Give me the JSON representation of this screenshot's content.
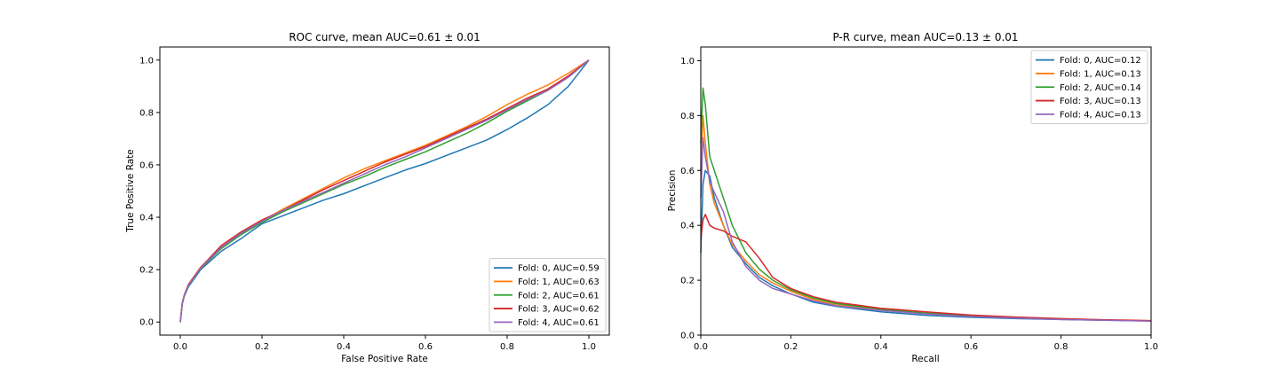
{
  "figure": {
    "background": "#ffffff"
  },
  "chart_data": [
    {
      "type": "line",
      "title": "ROC curve, mean AUC=0.61 ± 0.01",
      "xlabel": "False Positive Rate",
      "ylabel": "True Positive Rate",
      "xlim": [
        -0.05,
        1.05
      ],
      "ylim": [
        -0.05,
        1.05
      ],
      "xticks": [
        0.0,
        0.2,
        0.4,
        0.6,
        0.8,
        1.0
      ],
      "yticks": [
        0.0,
        0.2,
        0.4,
        0.6,
        0.8,
        1.0
      ],
      "xtick_labels": [
        "0.0",
        "0.2",
        "0.4",
        "0.6",
        "0.8",
        "1.0"
      ],
      "ytick_labels": [
        "0.0",
        "0.2",
        "0.4",
        "0.6",
        "0.8",
        "1.0"
      ],
      "grid": false,
      "legend_position": "lower-right",
      "x": [
        0.0,
        0.005,
        0.01,
        0.02,
        0.05,
        0.1,
        0.15,
        0.2,
        0.25,
        0.3,
        0.35,
        0.4,
        0.45,
        0.5,
        0.55,
        0.6,
        0.65,
        0.7,
        0.75,
        0.8,
        0.85,
        0.9,
        0.95,
        1.0
      ],
      "series": [
        {
          "name": "Fold: 0, AUC=0.59",
          "color": "#1f77b4",
          "values": [
            0.0,
            0.07,
            0.1,
            0.135,
            0.2,
            0.27,
            0.32,
            0.375,
            0.405,
            0.435,
            0.465,
            0.49,
            0.52,
            0.55,
            0.58,
            0.605,
            0.635,
            0.665,
            0.695,
            0.735,
            0.78,
            0.83,
            0.9,
            1.0
          ]
        },
        {
          "name": "Fold: 1, AUC=0.63",
          "color": "#ff7f0e",
          "values": [
            0.0,
            0.075,
            0.105,
            0.145,
            0.21,
            0.285,
            0.34,
            0.385,
            0.43,
            0.47,
            0.51,
            0.55,
            0.585,
            0.615,
            0.645,
            0.675,
            0.71,
            0.745,
            0.785,
            0.83,
            0.87,
            0.905,
            0.95,
            1.0
          ]
        },
        {
          "name": "Fold: 2, AUC=0.61",
          "color": "#2ca02c",
          "values": [
            0.0,
            0.072,
            0.102,
            0.14,
            0.205,
            0.28,
            0.335,
            0.38,
            0.42,
            0.455,
            0.49,
            0.525,
            0.555,
            0.59,
            0.62,
            0.65,
            0.685,
            0.72,
            0.76,
            0.805,
            0.845,
            0.885,
            0.935,
            1.0
          ]
        },
        {
          "name": "Fold: 3, AUC=0.62",
          "color": "#d62728",
          "values": [
            0.0,
            0.073,
            0.104,
            0.143,
            0.208,
            0.292,
            0.345,
            0.39,
            0.425,
            0.465,
            0.505,
            0.54,
            0.575,
            0.61,
            0.64,
            0.67,
            0.705,
            0.74,
            0.775,
            0.815,
            0.855,
            0.89,
            0.94,
            1.0
          ]
        },
        {
          "name": "Fold: 4, AUC=0.61",
          "color": "#9467bd",
          "values": [
            0.0,
            0.072,
            0.103,
            0.141,
            0.206,
            0.285,
            0.34,
            0.385,
            0.425,
            0.46,
            0.495,
            0.53,
            0.565,
            0.6,
            0.63,
            0.665,
            0.7,
            0.735,
            0.77,
            0.81,
            0.85,
            0.885,
            0.935,
            1.0
          ]
        }
      ]
    },
    {
      "type": "line",
      "title": "P-R curve, mean AUC=0.13 ± 0.01",
      "xlabel": "Recall",
      "ylabel": "Precision",
      "xlim": [
        0.0,
        1.0
      ],
      "ylim": [
        0.0,
        1.05
      ],
      "xticks": [
        0.0,
        0.2,
        0.4,
        0.6,
        0.8,
        1.0
      ],
      "yticks": [
        0.0,
        0.2,
        0.4,
        0.6,
        0.8,
        1.0
      ],
      "xtick_labels": [
        "0.0",
        "0.2",
        "0.4",
        "0.6",
        "0.8",
        "1.0"
      ],
      "ytick_labels": [
        "0.0",
        "0.2",
        "0.4",
        "0.6",
        "0.8",
        "1.0"
      ],
      "grid": false,
      "legend_position": "upper-right",
      "x": [
        0.0,
        0.005,
        0.01,
        0.02,
        0.03,
        0.05,
        0.07,
        0.1,
        0.13,
        0.16,
        0.2,
        0.25,
        0.3,
        0.4,
        0.5,
        0.6,
        0.7,
        0.8,
        0.9,
        1.0
      ],
      "series": [
        {
          "name": "Fold: 0, AUC=0.12",
          "color": "#1f77b4",
          "values": [
            0.3,
            0.55,
            0.6,
            0.58,
            0.5,
            0.4,
            0.32,
            0.26,
            0.21,
            0.18,
            0.15,
            0.12,
            0.105,
            0.085,
            0.072,
            0.065,
            0.06,
            0.057,
            0.054,
            0.052
          ]
        },
        {
          "name": "Fold: 1, AUC=0.13",
          "color": "#ff7f0e",
          "values": [
            0.6,
            0.8,
            0.7,
            0.55,
            0.48,
            0.4,
            0.33,
            0.27,
            0.22,
            0.19,
            0.16,
            0.13,
            0.11,
            0.092,
            0.08,
            0.07,
            0.063,
            0.058,
            0.055,
            0.052
          ]
        },
        {
          "name": "Fold: 2, AUC=0.14",
          "color": "#2ca02c",
          "values": [
            0.7,
            0.9,
            0.84,
            0.65,
            0.6,
            0.5,
            0.4,
            0.3,
            0.24,
            0.2,
            0.165,
            0.135,
            0.115,
            0.095,
            0.08,
            0.07,
            0.064,
            0.059,
            0.055,
            0.052
          ]
        },
        {
          "name": "Fold: 3, AUC=0.13",
          "color": "#d62728",
          "values": [
            0.35,
            0.42,
            0.44,
            0.4,
            0.39,
            0.38,
            0.36,
            0.34,
            0.28,
            0.21,
            0.17,
            0.14,
            0.12,
            0.098,
            0.085,
            0.073,
            0.066,
            0.06,
            0.056,
            0.053
          ]
        },
        {
          "name": "Fold: 4, AUC=0.13",
          "color": "#9467bd",
          "values": [
            0.5,
            0.72,
            0.65,
            0.56,
            0.52,
            0.45,
            0.34,
            0.25,
            0.2,
            0.17,
            0.15,
            0.125,
            0.107,
            0.09,
            0.077,
            0.068,
            0.062,
            0.057,
            0.054,
            0.051
          ]
        }
      ]
    }
  ]
}
